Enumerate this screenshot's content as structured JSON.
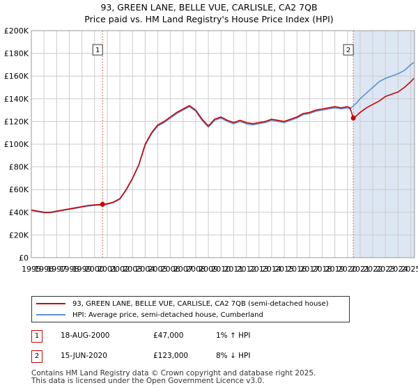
{
  "title_line1": "93, GREEN LANE, BELLE VUE, CARLISLE, CA2 7QB",
  "title_line2": "Price paid vs. HM Land Registry's House Price Index (HPI)",
  "colors": {
    "property": "#cc0000",
    "hpi": "#5b8fd1",
    "shade": "#dde6f3",
    "grid": "#cccccc",
    "marker_line": "#e06666"
  },
  "chart_data": {
    "type": "line",
    "title": "Price paid vs. HM Land Registry's House Price Index (HPI)",
    "xlabel": "",
    "ylabel": "",
    "xlim": [
      1995,
      2025.3
    ],
    "ylim": [
      0,
      200000
    ],
    "y_ticks": [
      0,
      20000,
      40000,
      60000,
      80000,
      100000,
      120000,
      140000,
      160000,
      180000,
      200000
    ],
    "y_tick_labels": [
      "£0",
      "£20K",
      "£40K",
      "£60K",
      "£80K",
      "£100K",
      "£120K",
      "£140K",
      "£160K",
      "£180K",
      "£200K"
    ],
    "x_ticks": [
      1995,
      1996,
      1997,
      1998,
      1999,
      2000,
      2001,
      2002,
      2003,
      2004,
      2005,
      2006,
      2007,
      2008,
      2009,
      2010,
      2011,
      2012,
      2013,
      2014,
      2015,
      2016,
      2017,
      2018,
      2019,
      2020,
      2021,
      2022,
      2023,
      2024,
      2025
    ],
    "x_tick_labels": [
      "1995",
      "1996",
      "1997",
      "1998",
      "1999",
      "2000",
      "2001",
      "2002",
      "2003",
      "2004",
      "2005",
      "2006",
      "2007",
      "2008",
      "2009",
      "2010",
      "2011",
      "2012",
      "2013",
      "2014",
      "2015",
      "2016",
      "2017",
      "2018",
      "2019",
      "2020",
      "2021",
      "2022",
      "2023",
      "2024",
      "2025"
    ],
    "shaded_range": [
      2020.46,
      2025.3
    ],
    "series": [
      {
        "name": "93, GREEN LANE, BELLE VUE, CARLISLE, CA2 7QB (semi-detached house)",
        "color": "#cc0000",
        "x": [
          1995.0,
          1995.5,
          1996.0,
          1996.5,
          1997.0,
          1997.5,
          1998.0,
          1998.5,
          1999.0,
          1999.5,
          2000.0,
          2000.63,
          2001.0,
          2001.5,
          2002.0,
          2002.5,
          2003.0,
          2003.5,
          2004.0,
          2004.5,
          2005.0,
          2005.5,
          2006.0,
          2006.5,
          2007.0,
          2007.5,
          2008.0,
          2008.5,
          2009.0,
          2009.5,
          2010.0,
          2010.5,
          2011.0,
          2011.5,
          2012.0,
          2012.5,
          2013.0,
          2013.5,
          2014.0,
          2014.5,
          2015.0,
          2015.5,
          2016.0,
          2016.5,
          2017.0,
          2017.5,
          2018.0,
          2018.5,
          2019.0,
          2019.5,
          2020.0,
          2020.2,
          2020.46,
          2020.7,
          2021.0,
          2021.5,
          2022.0,
          2022.5,
          2023.0,
          2023.5,
          2024.0,
          2024.5,
          2025.0,
          2025.25
        ],
        "values": [
          42000,
          41000,
          40000,
          40000,
          41000,
          42000,
          43000,
          44000,
          45000,
          46000,
          46500,
          47000,
          47500,
          49000,
          52000,
          60000,
          70000,
          82000,
          100000,
          110000,
          117000,
          120000,
          124000,
          128000,
          131000,
          134000,
          130000,
          122000,
          116000,
          122000,
          124000,
          121000,
          119000,
          121000,
          119000,
          118000,
          119000,
          120000,
          122000,
          121000,
          120000,
          122000,
          124000,
          127000,
          128000,
          130000,
          131000,
          132000,
          133000,
          132000,
          133000,
          132000,
          123000,
          125000,
          128000,
          132000,
          135000,
          138000,
          142000,
          144000,
          146000,
          150000,
          155000,
          158000
        ]
      },
      {
        "name": "HPI: Average price, semi-detached house, Cumberland",
        "color": "#5b8fd1",
        "x": [
          1995.0,
          1995.5,
          1996.0,
          1996.5,
          1997.0,
          1997.5,
          1998.0,
          1998.5,
          1999.0,
          1999.5,
          2000.0,
          2000.63,
          2001.0,
          2001.5,
          2002.0,
          2002.5,
          2003.0,
          2003.5,
          2004.0,
          2004.5,
          2005.0,
          2005.5,
          2006.0,
          2006.5,
          2007.0,
          2007.5,
          2008.0,
          2008.5,
          2009.0,
          2009.5,
          2010.0,
          2010.5,
          2011.0,
          2011.5,
          2012.0,
          2012.5,
          2013.0,
          2013.5,
          2014.0,
          2014.5,
          2015.0,
          2015.5,
          2016.0,
          2016.5,
          2017.0,
          2017.5,
          2018.0,
          2018.5,
          2019.0,
          2019.5,
          2020.0,
          2020.2,
          2020.46,
          2020.7,
          2021.0,
          2021.5,
          2022.0,
          2022.5,
          2023.0,
          2023.5,
          2024.0,
          2024.5,
          2025.0,
          2025.25
        ],
        "values": [
          41600,
          40600,
          39600,
          39600,
          40600,
          41600,
          42600,
          43500,
          44500,
          45500,
          46000,
          46500,
          47000,
          48500,
          51500,
          59500,
          69500,
          81500,
          99000,
          109000,
          116000,
          119000,
          123000,
          127000,
          130000,
          133000,
          129000,
          121000,
          115000,
          121000,
          123000,
          120000,
          118000,
          120000,
          118000,
          117000,
          118000,
          119000,
          121000,
          120000,
          119000,
          121000,
          123000,
          126000,
          127000,
          129000,
          130000,
          131000,
          132000,
          131000,
          132000,
          131000,
          133700,
          136000,
          140000,
          145000,
          150000,
          155000,
          158000,
          160000,
          162000,
          165000,
          170000,
          172000
        ]
      }
    ],
    "annotations": [
      {
        "label": "1",
        "x": 2000.63,
        "value": 47000
      },
      {
        "label": "2",
        "x": 2020.46,
        "value": 123000
      }
    ]
  },
  "legend": {
    "property_label": "93, GREEN LANE, BELLE VUE, CARLISLE, CA2 7QB (semi-detached house)",
    "hpi_label": "HPI: Average price, semi-detached house, Cumberland"
  },
  "sales": [
    {
      "label": "1",
      "date": "18-AUG-2000",
      "price": "£47,000",
      "hpi": "1% ↑ HPI"
    },
    {
      "label": "2",
      "date": "15-JUN-2020",
      "price": "£123,000",
      "hpi": "8% ↓ HPI"
    }
  ],
  "footer_line1": "Contains HM Land Registry data © Crown copyright and database right 2025.",
  "footer_line2": "This data is licensed under the Open Government Licence v3.0."
}
